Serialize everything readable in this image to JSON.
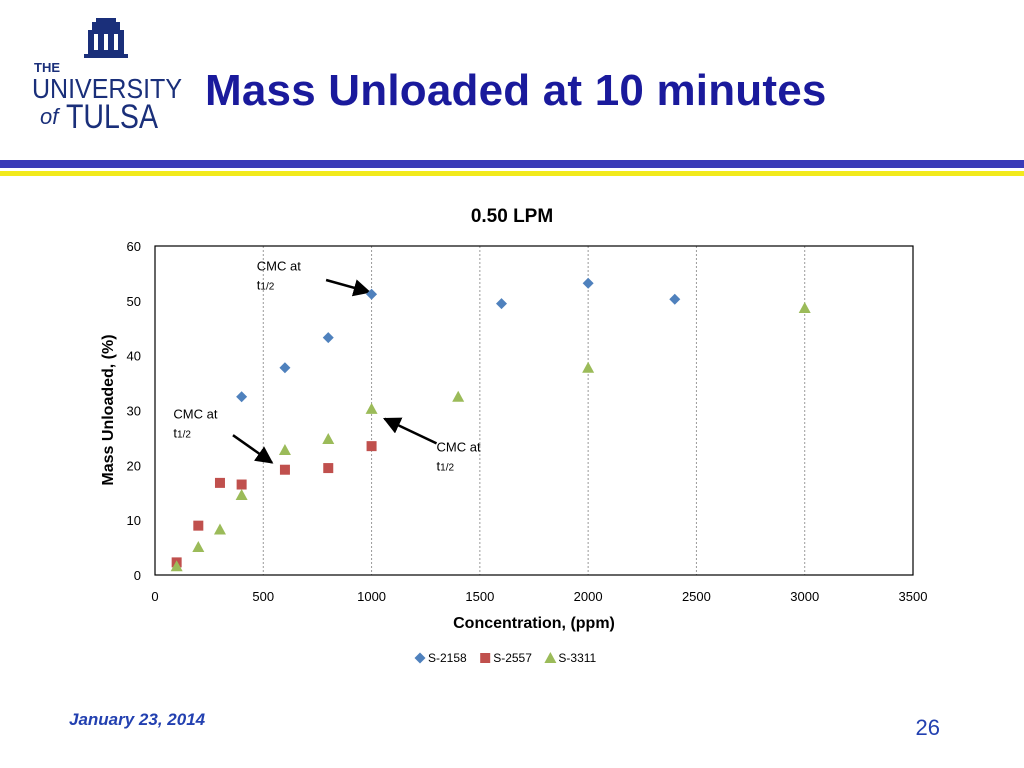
{
  "slide": {
    "title": "Mass Unloaded at 10 minutes",
    "date": "January 23, 2014",
    "page_number": "26"
  },
  "logo": {
    "line1": "THE",
    "line2": "UNIVERSITY",
    "line3_of": "of",
    "line3": "TULSA"
  },
  "colors": {
    "title": "#1a1a9c",
    "bar_blue": "#3a3ab8",
    "bar_yellow": "#f2ea1c",
    "footer": "#2240b0"
  },
  "chart_data": {
    "type": "scatter",
    "title": "0.50 LPM",
    "xlabel": "Concentration, (ppm)",
    "ylabel": "Mass Unloaded, (%)",
    "xlim": [
      0,
      3500
    ],
    "ylim": [
      0,
      60
    ],
    "xticks": [
      0,
      500,
      1000,
      1500,
      2000,
      2500,
      3000,
      3500
    ],
    "yticks": [
      0,
      10,
      20,
      30,
      40,
      50,
      60
    ],
    "vertical_grid": true,
    "legend_position": "bottom",
    "series": [
      {
        "name": "S-2158",
        "marker": "diamond",
        "color": "#4f81bd",
        "points": [
          [
            400,
            32.5
          ],
          [
            600,
            37.8
          ],
          [
            800,
            43.3
          ],
          [
            1000,
            51.2
          ],
          [
            1600,
            49.5
          ],
          [
            2000,
            53.2
          ],
          [
            2400,
            50.3
          ]
        ]
      },
      {
        "name": "S-2557",
        "marker": "square",
        "color": "#c0504d",
        "points": [
          [
            100,
            2.3
          ],
          [
            200,
            9.0
          ],
          [
            300,
            16.8
          ],
          [
            400,
            16.5
          ],
          [
            600,
            19.2
          ],
          [
            800,
            19.5
          ],
          [
            1000,
            23.5
          ]
        ]
      },
      {
        "name": "S-3311",
        "marker": "triangle",
        "color": "#9bbb59",
        "points": [
          [
            100,
            1.6
          ],
          [
            200,
            5.1
          ],
          [
            300,
            8.3
          ],
          [
            400,
            14.6
          ],
          [
            600,
            22.8
          ],
          [
            800,
            24.8
          ],
          [
            1000,
            30.3
          ],
          [
            1400,
            32.5
          ],
          [
            2000,
            37.8
          ],
          [
            3000,
            48.7
          ]
        ]
      }
    ],
    "annotations": [
      {
        "text": "CMC at",
        "sub": "t",
        "subscript": "1/2",
        "x": 470,
        "y": 55.5,
        "arrow_from": [
          790,
          53.8
        ],
        "arrow_to": [
          990,
          51.6
        ]
      },
      {
        "text": "CMC at",
        "sub": "t",
        "subscript": "1/2",
        "x": 85,
        "y": 28.5,
        "arrow_from": [
          360,
          25.5
        ],
        "arrow_to": [
          540,
          20.5
        ]
      },
      {
        "text": "CMC at",
        "sub": "t",
        "subscript": "1/2",
        "x": 1300,
        "y": 22.5,
        "arrow_from": [
          1300,
          24.0
        ],
        "arrow_to": [
          1060,
          28.5
        ]
      }
    ]
  }
}
